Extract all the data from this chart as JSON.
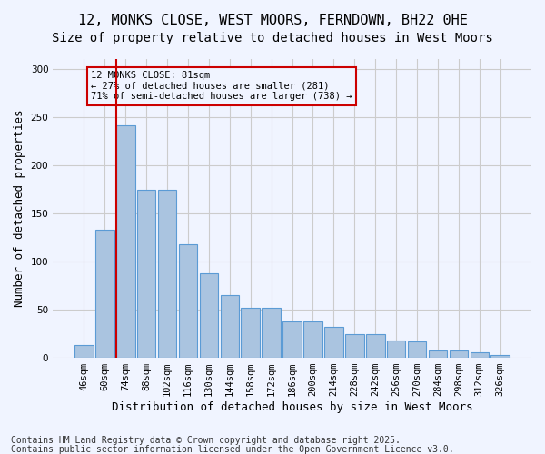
{
  "title_line1": "12, MONKS CLOSE, WEST MOORS, FERNDOWN, BH22 0HE",
  "title_line2": "Size of property relative to detached houses in West Moors",
  "xlabel": "Distribution of detached houses by size in West Moors",
  "ylabel": "Number of detached properties",
  "categories": [
    "46sqm",
    "60sqm",
    "74sqm",
    "88sqm",
    "102sqm",
    "116sqm",
    "130sqm",
    "144sqm",
    "158sqm",
    "172sqm",
    "186sqm",
    "200sqm",
    "214sqm",
    "228sqm",
    "242sqm",
    "256sqm",
    "270sqm",
    "284sqm",
    "298sqm",
    "312sqm",
    "326sqm"
  ],
  "values": [
    13,
    133,
    241,
    174,
    174,
    118,
    88,
    65,
    52,
    52,
    38,
    38,
    32,
    25,
    25,
    18,
    17,
    8,
    8,
    6,
    3
  ],
  "bar_color": "#aac4e0",
  "bar_edge_color": "#5b9bd5",
  "grid_color": "#cccccc",
  "background_color": "#f0f4ff",
  "vline_x": 2,
  "vline_color": "#cc0000",
  "annotation_text": "12 MONKS CLOSE: 81sqm\n← 27% of detached houses are smaller (281)\n71% of semi-detached houses are larger (738) →",
  "annotation_box_color": "#cc0000",
  "ylim": [
    0,
    310
  ],
  "yticks": [
    0,
    50,
    100,
    150,
    200,
    250,
    300
  ],
  "footer_line1": "Contains HM Land Registry data © Crown copyright and database right 2025.",
  "footer_line2": "Contains public sector information licensed under the Open Government Licence v3.0.",
  "title_fontsize": 11,
  "subtitle_fontsize": 10,
  "axis_fontsize": 9,
  "tick_fontsize": 7.5,
  "footer_fontsize": 7
}
